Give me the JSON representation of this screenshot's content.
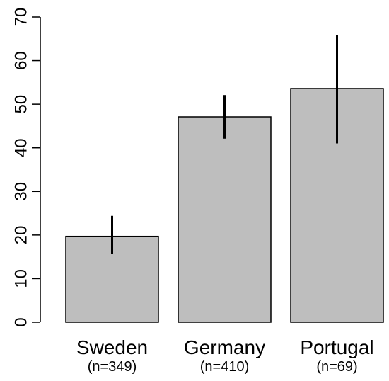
{
  "chart_data": {
    "type": "bar",
    "title": "",
    "xlabel": "",
    "ylabel": "",
    "ylim": [
      0,
      70
    ],
    "yticks": [
      0,
      10,
      20,
      30,
      40,
      50,
      60,
      70
    ],
    "grid": false,
    "bar_color": "#bebebe",
    "categories": [
      "Sweden",
      "Germany",
      "Portugal"
    ],
    "sample_sizes": [
      "(n=349)",
      "(n=410)",
      "(n=69)"
    ],
    "values": [
      19.7,
      47.1,
      53.6
    ],
    "error_low": [
      15.7,
      42.1,
      41.0
    ],
    "error_high": [
      24.4,
      52.1,
      65.8
    ]
  }
}
